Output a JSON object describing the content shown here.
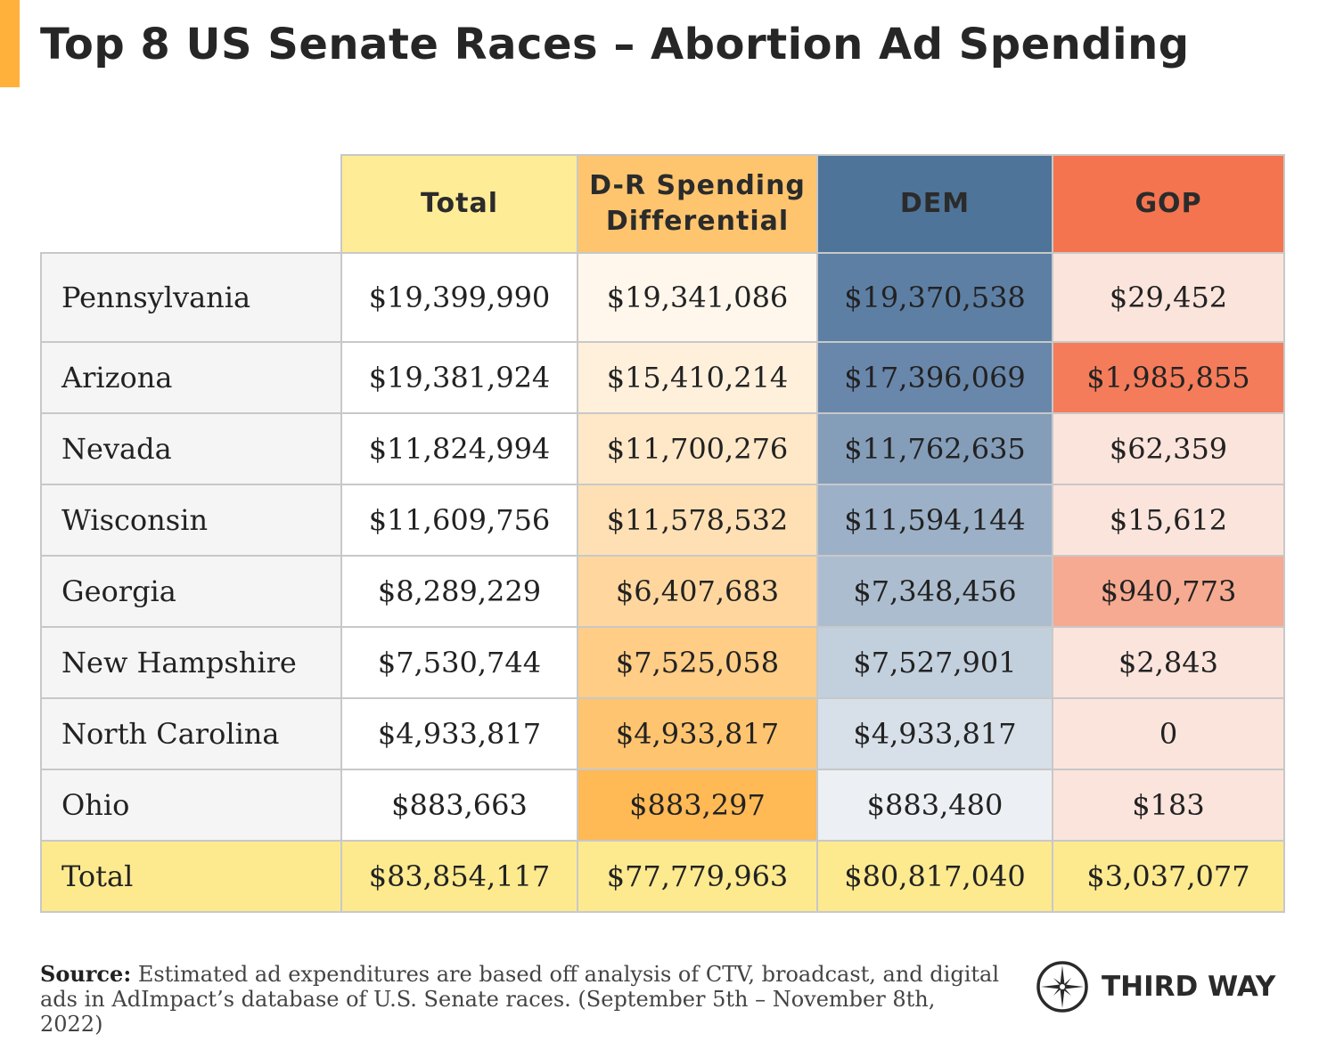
{
  "title": "Top 8 US Senate Races – Abortion Ad Spending",
  "chart_data": {
    "type": "table",
    "columns": [
      {
        "label": "Total",
        "color": "#ffec96"
      },
      {
        "label": "D-R Spending Differential",
        "line1": "D-R Spending",
        "line2": "Differential",
        "color": "#ffc56e"
      },
      {
        "label": "DEM",
        "color": "#4f7499"
      },
      {
        "label": "GOP",
        "color": "#f4744f"
      }
    ],
    "rows": [
      {
        "state": "Pennsylvania",
        "values": [
          "$19,399,990",
          "$19,341,086",
          "$19,370,538",
          "$29,452"
        ],
        "colors": [
          "#ffffff",
          "#fff7ec",
          "#5d7fa4",
          "#fbe4dc"
        ]
      },
      {
        "state": "Arizona",
        "values": [
          "$19,381,924",
          "$15,410,214",
          "$17,396,069",
          "$1,985,855"
        ],
        "colors": [
          "#ffffff",
          "#fff0dc",
          "#6987ab",
          "#f47c5a"
        ]
      },
      {
        "state": "Nevada",
        "values": [
          "$11,824,994",
          "$11,700,276",
          "$11,762,635",
          "$62,359"
        ],
        "colors": [
          "#ffffff",
          "#ffe8c8",
          "#849db9",
          "#fbe4dc"
        ]
      },
      {
        "state": "Wisconsin",
        "values": [
          "$11,609,756",
          "$11,578,532",
          "$11,594,144",
          "$15,612"
        ],
        "colors": [
          "#ffffff",
          "#ffe0b4",
          "#9cb0c7",
          "#fbe4dc"
        ]
      },
      {
        "state": "Georgia",
        "values": [
          "$8,289,229",
          "$6,407,683",
          "$7,348,456",
          "$940,773"
        ],
        "colors": [
          "#ffffff",
          "#ffd79e",
          "#adbdd0",
          "#f6aa91"
        ]
      },
      {
        "state": "New Hampshire",
        "values": [
          "$7,530,744",
          "$7,525,058",
          "$7,527,901",
          "$2,843"
        ],
        "colors": [
          "#ffffff",
          "#ffcd86",
          "#c2cfdc",
          "#fbe4dc"
        ]
      },
      {
        "state": "North Carolina",
        "values": [
          "$4,933,817",
          "$4,933,817",
          "$4,933,817",
          "0"
        ],
        "colors": [
          "#ffffff",
          "#ffc46f",
          "#d7dfe8",
          "#fbe4dc"
        ]
      },
      {
        "state": "Ohio",
        "values": [
          "$883,663",
          "$883,297",
          "$883,480",
          "$183"
        ],
        "colors": [
          "#ffffff",
          "#ffb955",
          "#eceff3",
          "#fbe4dc"
        ]
      }
    ],
    "total_row": {
      "state": "Total",
      "values": [
        "$83,854,117",
        "$77,779,963",
        "$80,817,040",
        "$3,037,077"
      ],
      "color": "#fdea8f"
    }
  },
  "source": {
    "label": "Source:",
    "text": "Estimated ad expenditures are based off analysis of CTV, broadcast, and digital ads in AdImpact’s database of U.S. Senate races. (September 5th – November 8th, 2022)"
  },
  "logo": {
    "text": "THIRD WAY",
    "icon": "compass-star-icon"
  }
}
